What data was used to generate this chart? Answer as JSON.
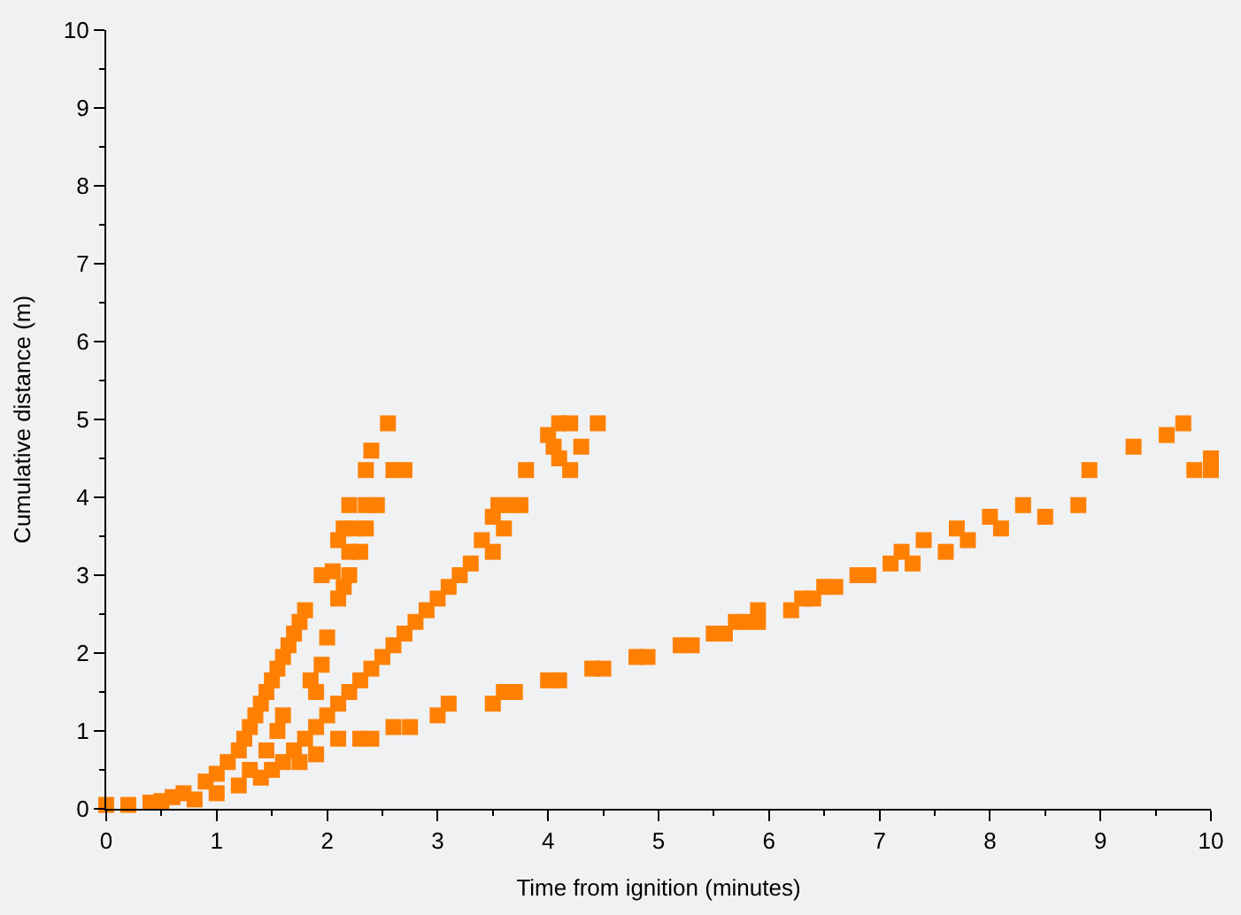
{
  "chart_data": {
    "type": "scatter",
    "xlabel": "Time from ignition (minutes)",
    "ylabel": "Cumulative distance (m)",
    "xlim": [
      0,
      10
    ],
    "ylim": [
      0,
      10
    ],
    "xticks": [
      0,
      1,
      2,
      3,
      4,
      5,
      6,
      7,
      8,
      9,
      10
    ],
    "yticks": [
      0,
      1,
      2,
      3,
      4,
      5,
      6,
      7,
      8,
      9,
      10
    ],
    "grid": false,
    "marker": "square",
    "series": [
      {
        "color": "#ff8000",
        "x": [
          2.55,
          2.4,
          2.35,
          2.6,
          2.7,
          2.2,
          2.35,
          2.45,
          2.15,
          2.25,
          2.35,
          2.1,
          2.2,
          2.3,
          1.95,
          2.05,
          2.2,
          2.15,
          2.1,
          1.8,
          1.75,
          1.7,
          1.65,
          1.6,
          1.55,
          1.5,
          1.45,
          1.4,
          1.35,
          1.3,
          1.25,
          1.2,
          1.1,
          1.0,
          0.9,
          0.7,
          0.6,
          0.5,
          0.4,
          0.2,
          0,
          2.0,
          1.95,
          1.9,
          1.85,
          1.6,
          1.55,
          1.45,
          1.3
        ],
        "values": [
          4.95,
          4.6,
          4.35,
          4.35,
          4.35,
          3.9,
          3.9,
          3.9,
          3.6,
          3.6,
          3.6,
          3.45,
          3.3,
          3.3,
          3.0,
          3.05,
          3.0,
          2.85,
          2.7,
          2.55,
          2.4,
          2.25,
          2.1,
          1.95,
          1.8,
          1.65,
          1.5,
          1.35,
          1.2,
          1.05,
          0.9,
          0.75,
          0.6,
          0.45,
          0.35,
          0.2,
          0.15,
          0.1,
          0.08,
          0.05,
          0.05,
          2.2,
          1.85,
          1.5,
          1.65,
          1.2,
          1.0,
          0.75,
          0.5
        ]
      },
      {
        "color": "#ff8000",
        "x": [
          4.45,
          4.2,
          4.1,
          4.0,
          4.05,
          4.3,
          4.1,
          4.2,
          3.8,
          3.55,
          3.65,
          3.75,
          3.5,
          3.6,
          3.4,
          3.5,
          3.3,
          3.2,
          3.1,
          3.0,
          2.9,
          2.8,
          2.7,
          2.6,
          2.5,
          2.4,
          2.3,
          2.2,
          2.1,
          2.0,
          1.9,
          1.8,
          1.7,
          1.6,
          1.5,
          1.4,
          1.2,
          1.0,
          0.8
        ],
        "values": [
          4.95,
          4.95,
          4.95,
          4.8,
          4.65,
          4.65,
          4.5,
          4.35,
          4.35,
          3.9,
          3.9,
          3.9,
          3.75,
          3.6,
          3.45,
          3.3,
          3.15,
          3.0,
          2.85,
          2.7,
          2.55,
          2.4,
          2.25,
          2.1,
          1.95,
          1.8,
          1.65,
          1.5,
          1.35,
          1.2,
          1.05,
          0.9,
          0.75,
          0.6,
          0.5,
          0.4,
          0.3,
          0.2,
          0.12
        ]
      },
      {
        "color": "#ff8000",
        "x": [
          1.75,
          1.9,
          2.1,
          2.3,
          2.4,
          2.6,
          2.75,
          3.0,
          3.1,
          3.5,
          3.6,
          3.7,
          4.0,
          4.1,
          4.4,
          4.5,
          4.8,
          4.9,
          5.2,
          5.3,
          5.5,
          5.6,
          5.7,
          5.8,
          5.9,
          5.9,
          6.2,
          6.3,
          6.4,
          6.5,
          6.6,
          6.8,
          6.9,
          7.1,
          7.2,
          7.3,
          7.4,
          7.6,
          7.7,
          7.8,
          8.0,
          8.1,
          8.3,
          8.5,
          8.8,
          8.9,
          9.3,
          9.6,
          9.75,
          9.85,
          10.0,
          10.0
        ],
        "values": [
          0.6,
          0.7,
          0.9,
          0.9,
          0.9,
          1.05,
          1.05,
          1.2,
          1.35,
          1.35,
          1.5,
          1.5,
          1.65,
          1.65,
          1.8,
          1.8,
          1.95,
          1.95,
          2.1,
          2.1,
          2.25,
          2.25,
          2.4,
          2.4,
          2.55,
          2.4,
          2.55,
          2.7,
          2.7,
          2.85,
          2.85,
          3.0,
          3.0,
          3.15,
          3.3,
          3.15,
          3.45,
          3.3,
          3.6,
          3.45,
          3.75,
          3.6,
          3.9,
          3.75,
          3.9,
          4.35,
          4.65,
          4.8,
          4.95,
          4.35,
          4.35,
          4.5
        ]
      }
    ]
  }
}
